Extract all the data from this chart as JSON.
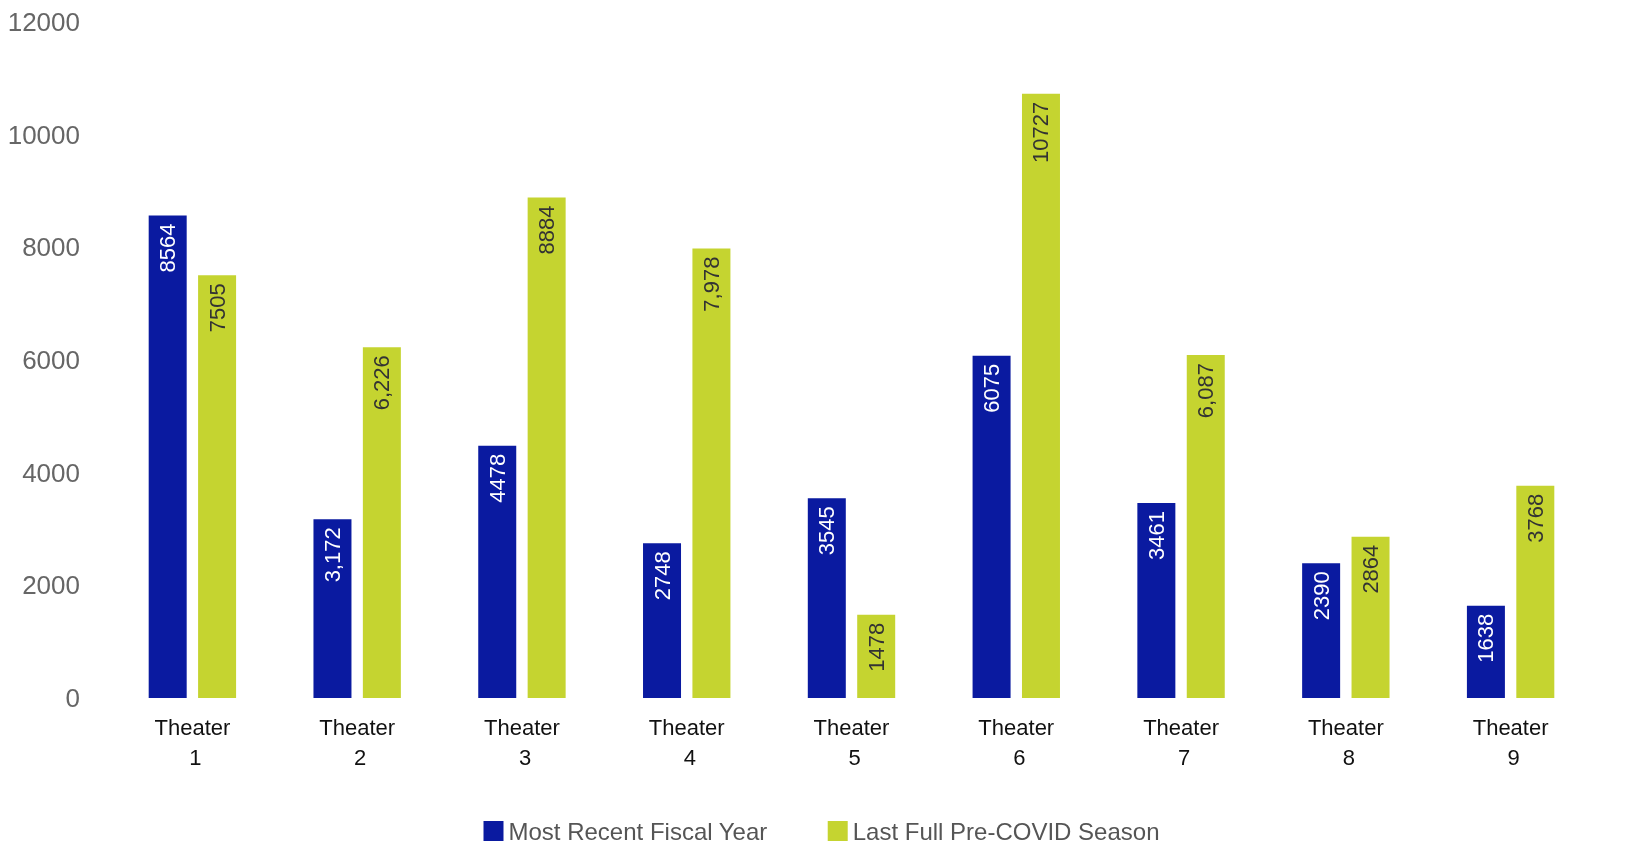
{
  "chart_data": {
    "type": "bar",
    "categories": [
      "Theater 1",
      "Theater 2",
      "Theater 3",
      "Theater 4",
      "Theater 5",
      "Theater 6",
      "Theater 7",
      "Theater 8",
      "Theater 9"
    ],
    "series": [
      {
        "name": "Most Recent Fiscal Year",
        "color": "#0a1aa0",
        "values": [
          8564,
          3172,
          4478,
          2748,
          3545,
          6075,
          3461,
          2390,
          1638
        ],
        "value_labels": [
          "8564",
          "3,172",
          "4478",
          "2748",
          "3545",
          "6075",
          "3461",
          "2390",
          "1638"
        ]
      },
      {
        "name": "Last Full Pre-COVID Season",
        "color": "#c5d430",
        "values": [
          7505,
          6226,
          8884,
          7978,
          1478,
          10727,
          6087,
          2864,
          3768
        ],
        "value_labels": [
          "7505",
          "6,226",
          "8884",
          "7,978",
          "1478",
          "10727",
          "6,087",
          "2864",
          "3768"
        ]
      }
    ],
    "ylim": [
      0,
      12000
    ],
    "yticks": [
      0,
      2000,
      4000,
      6000,
      8000,
      10000,
      12000
    ],
    "grid": false,
    "legend": "bottom"
  }
}
